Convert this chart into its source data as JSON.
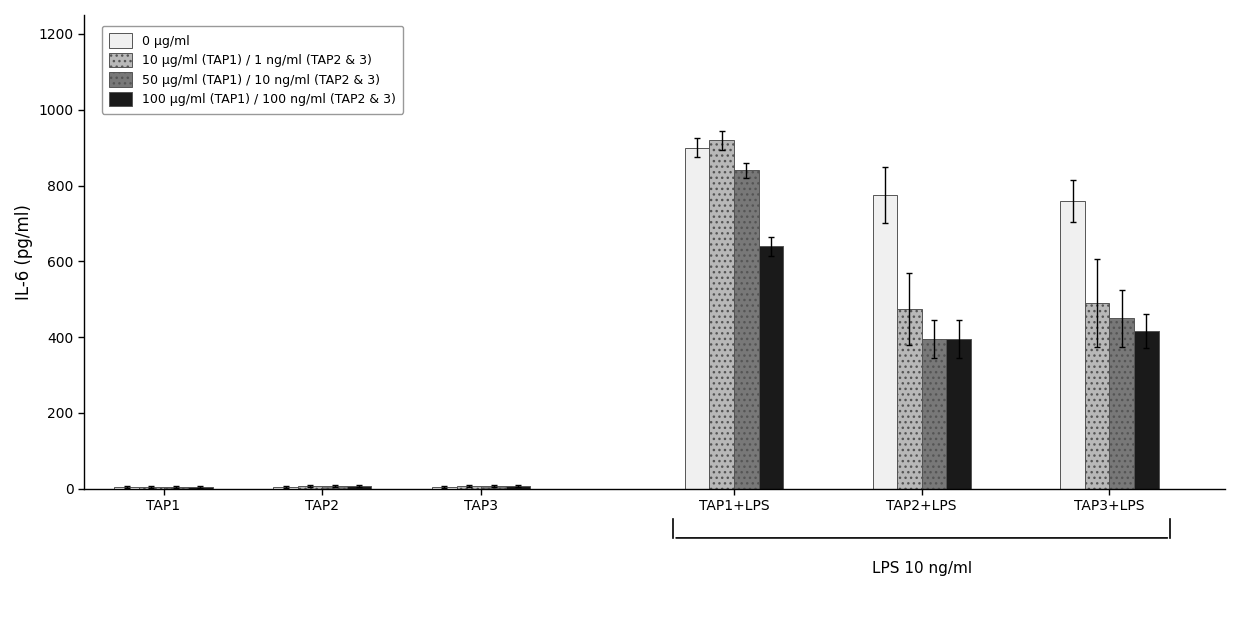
{
  "groups": [
    "TAP1",
    "TAP2",
    "TAP3",
    "TAP1+LPS",
    "TAP2+LPS",
    "TAP3+LPS"
  ],
  "series_labels": [
    "0 μg/ml",
    "10 μg/ml (TAP1) / 1 ng/ml (TAP2 & 3)",
    "50 μg/ml (TAP1) / 10 ng/ml (TAP2 & 3)",
    "100 μg/ml (TAP1) / 100 ng/ml (TAP2 & 3)"
  ],
  "values": [
    [
      5,
      5,
      5,
      900,
      775,
      760
    ],
    [
      5,
      8,
      8,
      920,
      475,
      490
    ],
    [
      5,
      8,
      8,
      840,
      395,
      450
    ],
    [
      5,
      8,
      8,
      640,
      395,
      415
    ]
  ],
  "errors": [
    [
      3,
      3,
      3,
      25,
      75,
      55
    ],
    [
      3,
      3,
      3,
      25,
      95,
      115
    ],
    [
      3,
      3,
      3,
      20,
      50,
      75
    ],
    [
      3,
      3,
      3,
      25,
      50,
      45
    ]
  ],
  "colors": [
    "#f0f0f0",
    "#b8b8b8",
    "#787878",
    "#1a1a1a"
  ],
  "hatches": [
    "",
    "...",
    "...",
    ""
  ],
  "ylabel": "IL-6 (pg/ml)",
  "ylim": [
    0,
    1250
  ],
  "yticks": [
    0,
    200,
    400,
    600,
    800,
    1000,
    1200
  ],
  "lps_label": "LPS 10 ng/ml",
  "bar_width": 0.17,
  "background_color": "#ffffff",
  "edge_color": "#555555",
  "group_positions": [
    0.55,
    1.65,
    2.75,
    4.5,
    5.8,
    7.1
  ],
  "xlim": [
    0.0,
    7.9
  ]
}
